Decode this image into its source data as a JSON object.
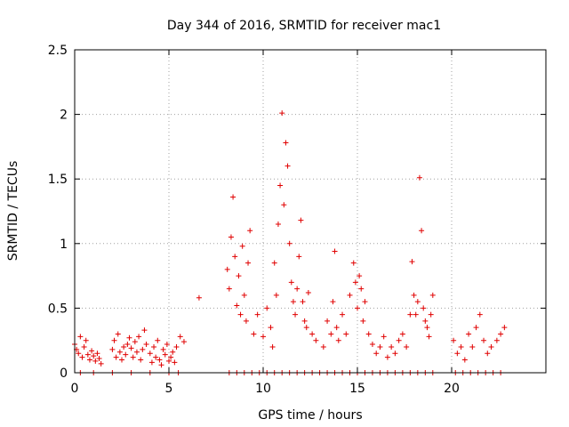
{
  "chart_data": {
    "type": "scatter",
    "title": "Day 344 of 2016, SRMTID for receiver mac1",
    "xlabel": "GPS time / hours",
    "ylabel": "SRMTID / TECUs",
    "xlim": [
      0,
      25
    ],
    "ylim": [
      0,
      2.5
    ],
    "xticks": [
      0,
      5,
      10,
      15,
      20
    ],
    "xtick_labels": [
      "0",
      "5",
      "10",
      "15",
      "20"
    ],
    "yticks": [
      0,
      0.5,
      1,
      1.5,
      2,
      2.5
    ],
    "ytick_labels": [
      "0",
      "0.5",
      "1",
      "1.5",
      "2",
      "2.5"
    ],
    "grid": true,
    "marker": "+",
    "color": "#e00000",
    "series": [
      {
        "name": "SRMTID",
        "x": [
          0.0,
          0.1,
          0.2,
          0.3,
          0.4,
          0.5,
          0.6,
          0.7,
          0.8,
          0.9,
          1.0,
          1.1,
          1.2,
          1.3,
          1.4,
          2.0,
          2.1,
          2.2,
          2.3,
          2.4,
          2.5,
          2.6,
          2.7,
          2.8,
          2.9,
          3.0,
          3.1,
          3.2,
          3.3,
          3.4,
          3.5,
          3.6,
          3.7,
          3.8,
          4.0,
          4.1,
          4.2,
          4.3,
          4.4,
          4.5,
          4.6,
          4.7,
          4.8,
          4.9,
          5.0,
          5.1,
          5.2,
          5.3,
          5.4,
          5.6,
          5.8,
          6.6,
          8.1,
          8.2,
          8.3,
          8.4,
          8.5,
          8.6,
          8.7,
          8.8,
          8.9,
          9.0,
          9.1,
          9.2,
          9.3,
          9.5,
          9.7,
          10.0,
          10.2,
          10.4,
          10.5,
          10.6,
          10.7,
          10.8,
          10.9,
          11.0,
          11.1,
          11.2,
          11.3,
          11.4,
          11.5,
          11.6,
          11.7,
          11.8,
          11.9,
          12.0,
          12.1,
          12.2,
          12.3,
          12.4,
          12.6,
          12.8,
          13.2,
          13.4,
          13.6,
          13.7,
          13.8,
          13.9,
          14.0,
          14.2,
          14.4,
          14.6,
          14.8,
          14.9,
          15.0,
          15.1,
          15.2,
          15.3,
          15.4,
          15.6,
          15.8,
          16.0,
          16.2,
          16.4,
          16.6,
          16.8,
          17.0,
          17.2,
          17.4,
          17.6,
          17.8,
          17.9,
          18.0,
          18.1,
          18.2,
          18.3,
          18.4,
          18.5,
          18.6,
          18.7,
          18.8,
          18.9,
          19.0,
          20.1,
          20.3,
          20.5,
          20.7,
          20.9,
          21.1,
          21.3,
          21.5,
          21.7,
          21.9,
          22.1,
          22.4,
          22.6,
          22.8,
          0.3,
          1.0,
          2.0,
          3.0,
          4.0,
          5.0,
          5.5,
          8.2,
          8.6,
          9.0,
          9.4,
          9.8,
          10.2,
          10.6,
          11.0,
          11.4,
          11.8,
          12.2,
          12.6,
          13.0,
          13.4,
          13.8,
          14.2,
          14.6,
          15.0,
          15.4,
          15.8,
          16.2,
          16.6,
          17.0,
          17.4,
          17.8,
          18.2,
          18.6,
          19.0,
          20.2,
          20.6,
          21.0,
          21.4,
          21.8,
          22.2,
          22.6
        ],
        "y": [
          0.22,
          0.18,
          0.15,
          0.28,
          0.12,
          0.2,
          0.25,
          0.14,
          0.1,
          0.17,
          0.13,
          0.09,
          0.15,
          0.11,
          0.07,
          0.18,
          0.25,
          0.12,
          0.3,
          0.16,
          0.1,
          0.2,
          0.14,
          0.22,
          0.27,
          0.19,
          0.12,
          0.24,
          0.16,
          0.28,
          0.1,
          0.18,
          0.33,
          0.22,
          0.15,
          0.08,
          0.2,
          0.12,
          0.25,
          0.1,
          0.06,
          0.18,
          0.14,
          0.22,
          0.09,
          0.12,
          0.16,
          0.08,
          0.2,
          0.28,
          0.24,
          0.58,
          0.8,
          0.65,
          1.05,
          1.36,
          0.9,
          0.52,
          0.75,
          0.45,
          0.98,
          0.6,
          0.4,
          0.85,
          1.1,
          0.3,
          0.45,
          0.28,
          0.5,
          0.35,
          0.2,
          0.85,
          0.6,
          1.15,
          1.45,
          2.01,
          1.3,
          1.78,
          1.6,
          1.0,
          0.7,
          0.55,
          0.45,
          0.65,
          0.9,
          1.18,
          0.55,
          0.4,
          0.35,
          0.62,
          0.3,
          0.25,
          0.2,
          0.4,
          0.3,
          0.55,
          0.94,
          0.35,
          0.25,
          0.45,
          0.3,
          0.6,
          0.85,
          0.7,
          0.5,
          0.75,
          0.65,
          0.4,
          0.55,
          0.3,
          0.22,
          0.15,
          0.2,
          0.28,
          0.12,
          0.2,
          0.15,
          0.25,
          0.3,
          0.2,
          0.45,
          0.86,
          0.6,
          0.45,
          0.55,
          1.51,
          1.1,
          0.5,
          0.4,
          0.35,
          0.28,
          0.45,
          0.6,
          0.25,
          0.15,
          0.2,
          0.1,
          0.3,
          0.2,
          0.35,
          0.45,
          0.25,
          0.15,
          0.2,
          0.25,
          0.3,
          0.35,
          0,
          0,
          0,
          0,
          0,
          0,
          0,
          0,
          0,
          0,
          0,
          0,
          0,
          0,
          0,
          0,
          0,
          0,
          0,
          0,
          0,
          0,
          0,
          0,
          0,
          0,
          0,
          0,
          0,
          0,
          0,
          0,
          0,
          0,
          0,
          0,
          0,
          0,
          0,
          0,
          0,
          0
        ]
      }
    ]
  }
}
